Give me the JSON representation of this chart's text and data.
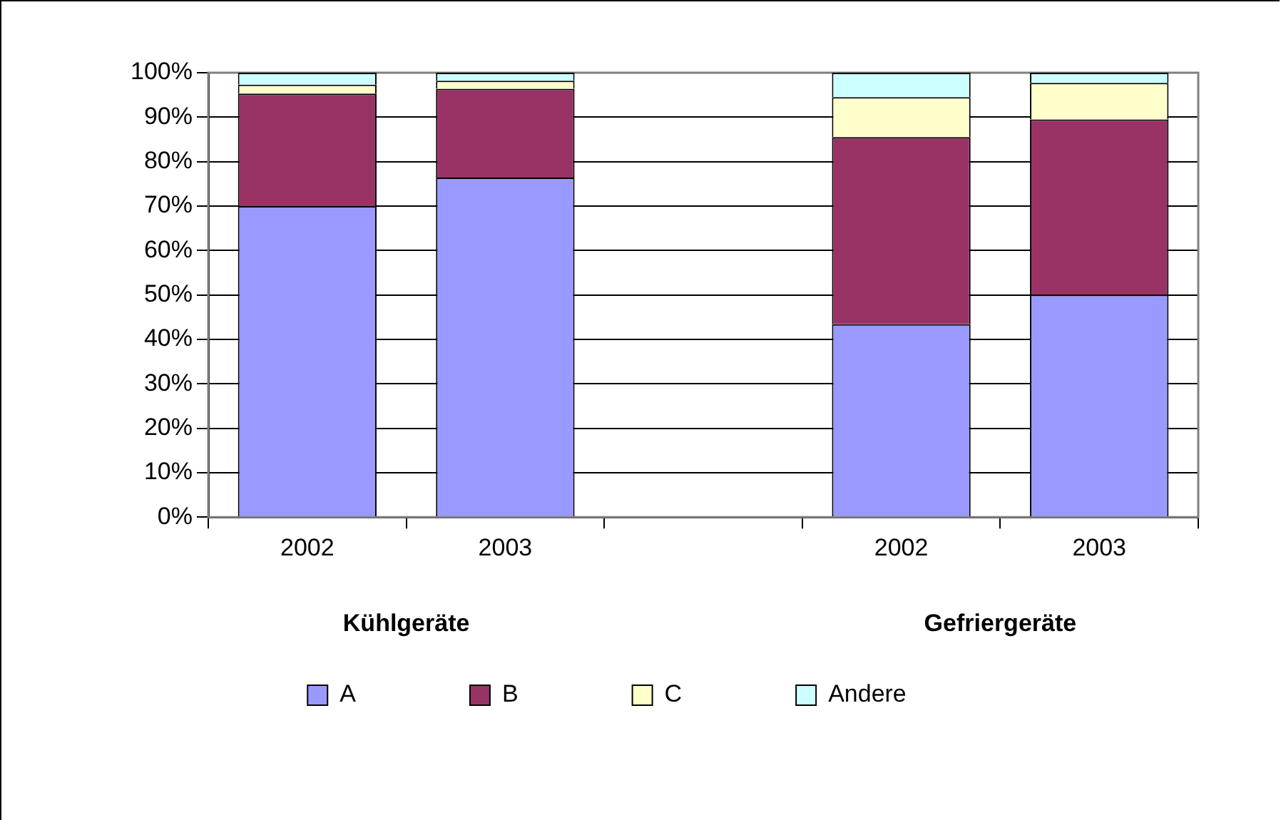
{
  "chart_data": {
    "type": "bar",
    "stacked": true,
    "categories": [
      "2002",
      "2003",
      null,
      "2002",
      "2003"
    ],
    "series": [
      {
        "name": "A",
        "color": "#9999ff",
        "values": [
          70,
          76.4,
          null,
          43.4,
          50
        ]
      },
      {
        "name": "B",
        "color": "#993366",
        "values": [
          25.3,
          20,
          null,
          42.1,
          39.5
        ]
      },
      {
        "name": "C",
        "color": "#ffffcc",
        "values": [
          2,
          1.8,
          null,
          9,
          8.2
        ]
      },
      {
        "name": "Andere",
        "color": "#ccffff",
        "values": [
          2.7,
          1.8,
          null,
          5.5,
          2.3
        ]
      }
    ],
    "ylim": [
      0,
      100
    ],
    "yticks": [
      {
        "value": 0,
        "label": "0%"
      },
      {
        "value": 10,
        "label": "10%"
      },
      {
        "value": 20,
        "label": "20%"
      },
      {
        "value": 30,
        "label": "30%"
      },
      {
        "value": 40,
        "label": "40%"
      },
      {
        "value": 50,
        "label": "50%"
      },
      {
        "value": 60,
        "label": "60%"
      },
      {
        "value": 70,
        "label": "70%"
      },
      {
        "value": 80,
        "label": "80%"
      },
      {
        "value": 90,
        "label": "90%"
      },
      {
        "value": 100,
        "label": "100%"
      }
    ],
    "grid": "y",
    "legend": "bottom",
    "annotations": [
      "Kühlgeräte",
      "Gefriergeräte"
    ]
  }
}
